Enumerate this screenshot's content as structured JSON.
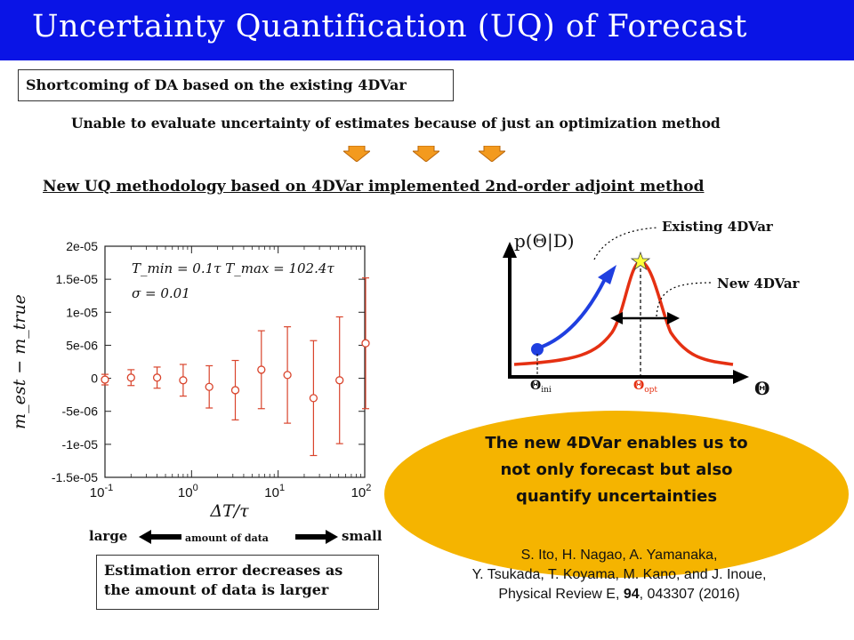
{
  "header": {
    "title": "Uncertainty Quantification (UQ) of Forecast"
  },
  "shortcoming": {
    "label": "Shortcoming of DA based on the existing 4DVar",
    "detail": "Unable to evaluate uncertainty of estimates because of just an optimization method"
  },
  "arrow_color": "#f39a1e",
  "new_method": "New UQ methodology based on 4DVar implemented 2nd-order adjoint method",
  "plot": {
    "ylabel": "m_est − m_true",
    "xlabel": "ΔT/τ",
    "annotation_line1": "T_min = 0.1τ   T_max = 102.4τ",
    "annotation_line2": "σ = 0.01",
    "xticks": [
      "10^-1",
      "10^0",
      "10^1",
      "10^2"
    ],
    "yticks": [
      "2e-05",
      "1.5e-05",
      "1e-05",
      "5e-06",
      "0",
      "-5e-06",
      "-1e-05",
      "-1.5e-05"
    ],
    "color": "#d9442c"
  },
  "chart_data": {
    "type": "scatter",
    "xscale": "log",
    "xlim": [
      0.1,
      100
    ],
    "ylim": [
      -1.5e-05,
      2e-05
    ],
    "points": [
      {
        "x": 0.1,
        "y": -2e-07,
        "err": 8e-07
      },
      {
        "x": 0.2,
        "y": 1e-07,
        "err": 1.2e-06
      },
      {
        "x": 0.4,
        "y": 1e-07,
        "err": 1.6e-06
      },
      {
        "x": 0.8,
        "y": -3e-07,
        "err": 2.4e-06
      },
      {
        "x": 1.6,
        "y": -1.3e-06,
        "err": 3.2e-06
      },
      {
        "x": 3.2,
        "y": -1.8e-06,
        "err": 4.5e-06
      },
      {
        "x": 6.4,
        "y": 1.3e-06,
        "err": 5.9e-06
      },
      {
        "x": 12.8,
        "y": 5e-07,
        "err": 7.3e-06
      },
      {
        "x": 25.6,
        "y": -3e-06,
        "err": 8.7e-06
      },
      {
        "x": 51.2,
        "y": -3e-07,
        "err": 9.6e-06
      },
      {
        "x": 102.4,
        "y": 5.3e-06,
        "err": 9.9e-06
      }
    ]
  },
  "amount": {
    "large": "large",
    "mid": "amount of data",
    "small": "small"
  },
  "estimation_box": "Estimation error decreases as the amount of data is larger",
  "diagram": {
    "ylabel": "p(Θ|D)",
    "xlabel": "Θ",
    "existing": "Existing 4DVar",
    "new": "New 4DVar",
    "theta_ini": "Θ",
    "theta_ini_sub": "ini",
    "theta_opt": "Θ",
    "theta_opt_sub": "opt",
    "red": "#e53012",
    "blue": "#1f3fe0"
  },
  "ellipse_text": [
    "The new 4DVar enables us to",
    "not only forecast but also",
    "quantify uncertainties"
  ],
  "ellipse_color": "#f5b400",
  "citation": {
    "line1": "S. Ito, H. Nagao, A. Yamanaka,",
    "line2": "Y. Tsukada, T. Koyama, M. Kano, and J. Inoue,",
    "line3_pre": "Physical Review E, ",
    "line3_vol": "94",
    "line3_post": ", 043307 (2016)"
  }
}
